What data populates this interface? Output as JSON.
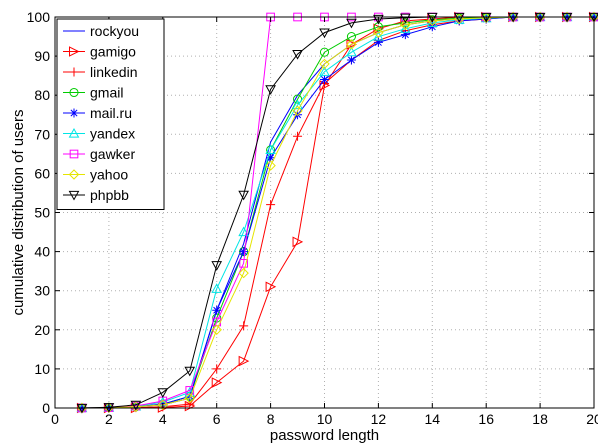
{
  "chart_data": {
    "type": "line",
    "title": "",
    "xlabel": "password length",
    "ylabel": "cumulative distribution of users",
    "xlim": [
      0,
      20
    ],
    "ylim": [
      0,
      100
    ],
    "xticks": [
      0,
      2,
      4,
      6,
      8,
      10,
      12,
      14,
      16,
      18,
      20
    ],
    "yticks": [
      0,
      10,
      20,
      30,
      40,
      50,
      60,
      70,
      80,
      90,
      100
    ],
    "grid": true,
    "legend_position": "top-left",
    "x": [
      1,
      2,
      3,
      4,
      5,
      6,
      7,
      8,
      9,
      10,
      11,
      12,
      13,
      14,
      15,
      16,
      17,
      18,
      19,
      20
    ],
    "series": [
      {
        "name": "rockyou",
        "color": "#0000ff",
        "marker": "none",
        "values": [
          0,
          0.1,
          0.3,
          0.8,
          2.5,
          25,
          42,
          68,
          80,
          88,
          93,
          96,
          98,
          99,
          99.5,
          99.8,
          100,
          100,
          100,
          100
        ]
      },
      {
        "name": "gamigo",
        "color": "#ff0000",
        "marker": "triangle-right",
        "values": [
          0,
          0,
          0,
          0.1,
          0.5,
          6.5,
          12,
          31,
          42.5,
          82.5,
          93,
          97,
          99,
          99.5,
          100,
          100,
          100,
          100,
          100,
          100
        ]
      },
      {
        "name": "linkedin",
        "color": "#ff0000",
        "marker": "plus",
        "values": [
          0,
          0,
          0.1,
          0.3,
          1,
          10,
          21,
          52,
          69.5,
          83,
          89,
          94,
          96.5,
          98,
          99,
          99.5,
          100,
          100,
          100,
          100
        ]
      },
      {
        "name": "gmail",
        "color": "#00cc00",
        "marker": "circle",
        "values": [
          0,
          0.1,
          0.3,
          1,
          3,
          23,
          40,
          66,
          79,
          91,
          95,
          97.5,
          98.5,
          99.3,
          99.7,
          99.9,
          100,
          100,
          100,
          100
        ]
      },
      {
        "name": "mail.ru",
        "color": "#0000ff",
        "marker": "star",
        "values": [
          0,
          0.1,
          0.3,
          1,
          3,
          25,
          40,
          64,
          75,
          84,
          89,
          93.5,
          95.5,
          97.5,
          99,
          99.5,
          100,
          100,
          100,
          100
        ]
      },
      {
        "name": "yandex",
        "color": "#00e5e5",
        "marker": "triangle-up",
        "values": [
          0,
          0.1,
          0.4,
          1.5,
          4,
          30.5,
          45,
          66,
          77.5,
          86,
          91,
          95,
          97,
          98.5,
          99.3,
          99.7,
          100,
          100,
          100,
          100
        ]
      },
      {
        "name": "gawker",
        "color": "#ff00ff",
        "marker": "square",
        "values": [
          0,
          0.1,
          0.5,
          1.8,
          4.5,
          22,
          37,
          100,
          100,
          100,
          100,
          100,
          100,
          100,
          100,
          100,
          100,
          100,
          100,
          100
        ]
      },
      {
        "name": "yahoo",
        "color": "#e5e500",
        "marker": "diamond",
        "values": [
          0,
          0.1,
          0.3,
          0.8,
          2.5,
          20,
          34.5,
          62,
          76,
          88,
          93,
          96,
          98,
          99,
          99.5,
          99.8,
          100,
          100,
          100,
          100
        ]
      },
      {
        "name": "phpbb",
        "color": "#000000",
        "marker": "triangle-down",
        "values": [
          0,
          0.2,
          0.8,
          4,
          9.5,
          36.5,
          54.5,
          81.5,
          90.5,
          96,
          98.5,
          99.5,
          99.8,
          100,
          100,
          100,
          100,
          100,
          100,
          100
        ]
      }
    ]
  }
}
